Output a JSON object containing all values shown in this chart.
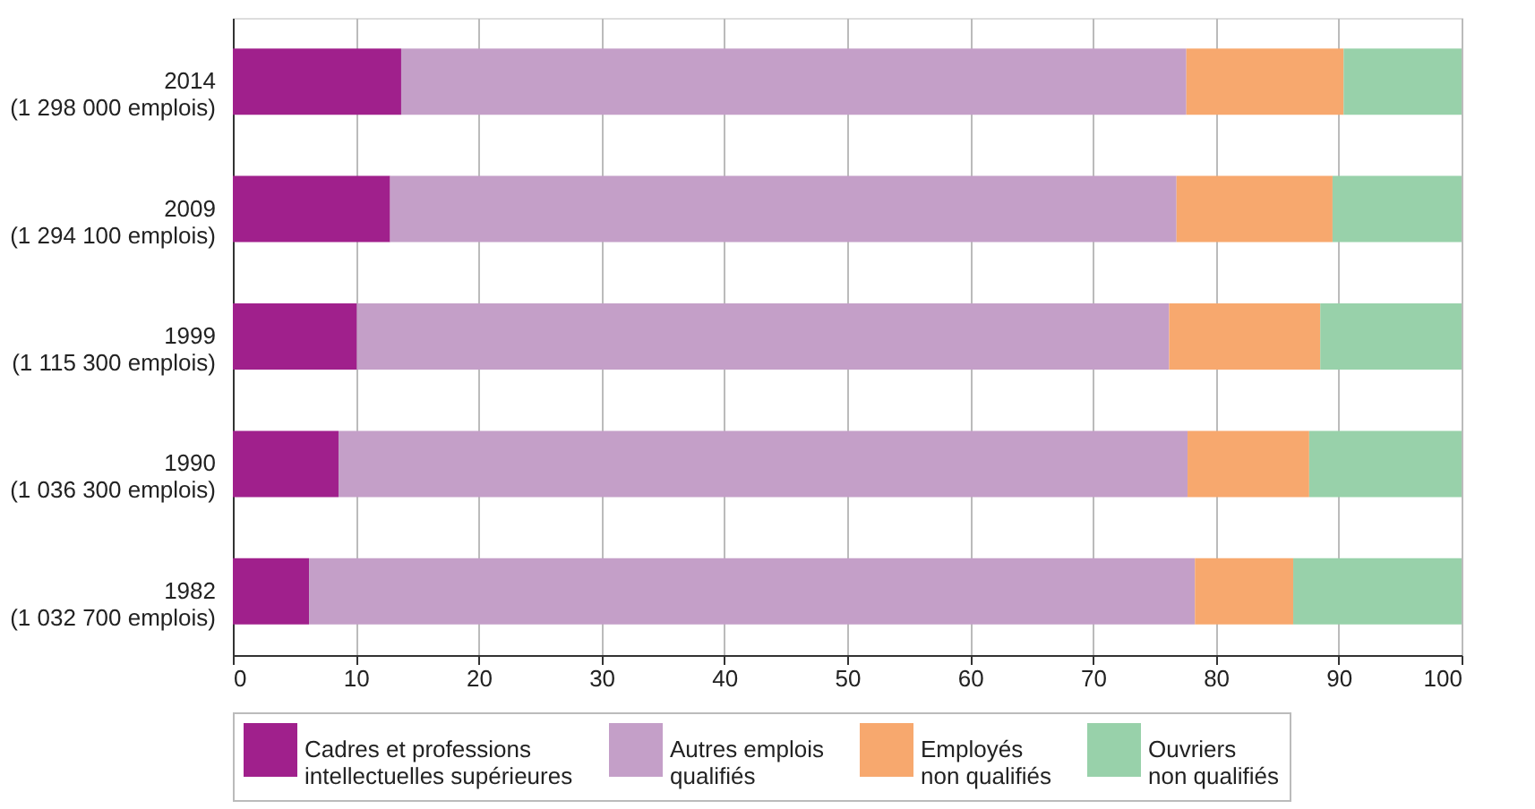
{
  "chart_data": {
    "type": "bar",
    "orientation": "horizontal",
    "stacked": true,
    "categories": [
      "2014\n(1 298 000 emplois)",
      "2009\n(1 294 100 emplois)",
      "1999\n(1 115 300 emplois)",
      "1990\n(1 036 300 emplois)",
      "1982\n(1 032 700 emplois)"
    ],
    "series": [
      {
        "name": "Cadres et professions\nintellectuelles supérieures",
        "color": "#a0208c",
        "values": [
          13.7,
          12.8,
          10.1,
          8.6,
          6.2
        ]
      },
      {
        "name": "Autres emplois\nqualifiés",
        "color": "#c49fc8",
        "values": [
          63.9,
          64.0,
          66.1,
          69.1,
          72.1
        ]
      },
      {
        "name": "Employés\nnon qualifiés",
        "color": "#f7a86e",
        "values": [
          12.8,
          12.7,
          12.3,
          9.9,
          8.0
        ]
      },
      {
        "name": "Ouvriers\nnon qualifiés",
        "color": "#98d1aa",
        "values": [
          9.6,
          10.5,
          11.5,
          12.4,
          13.7
        ]
      }
    ],
    "xlim": [
      0,
      100
    ],
    "xticks": [
      0,
      10,
      20,
      30,
      40,
      50,
      60,
      70,
      80,
      90,
      100
    ],
    "grid": "x",
    "legend": "bottom"
  }
}
